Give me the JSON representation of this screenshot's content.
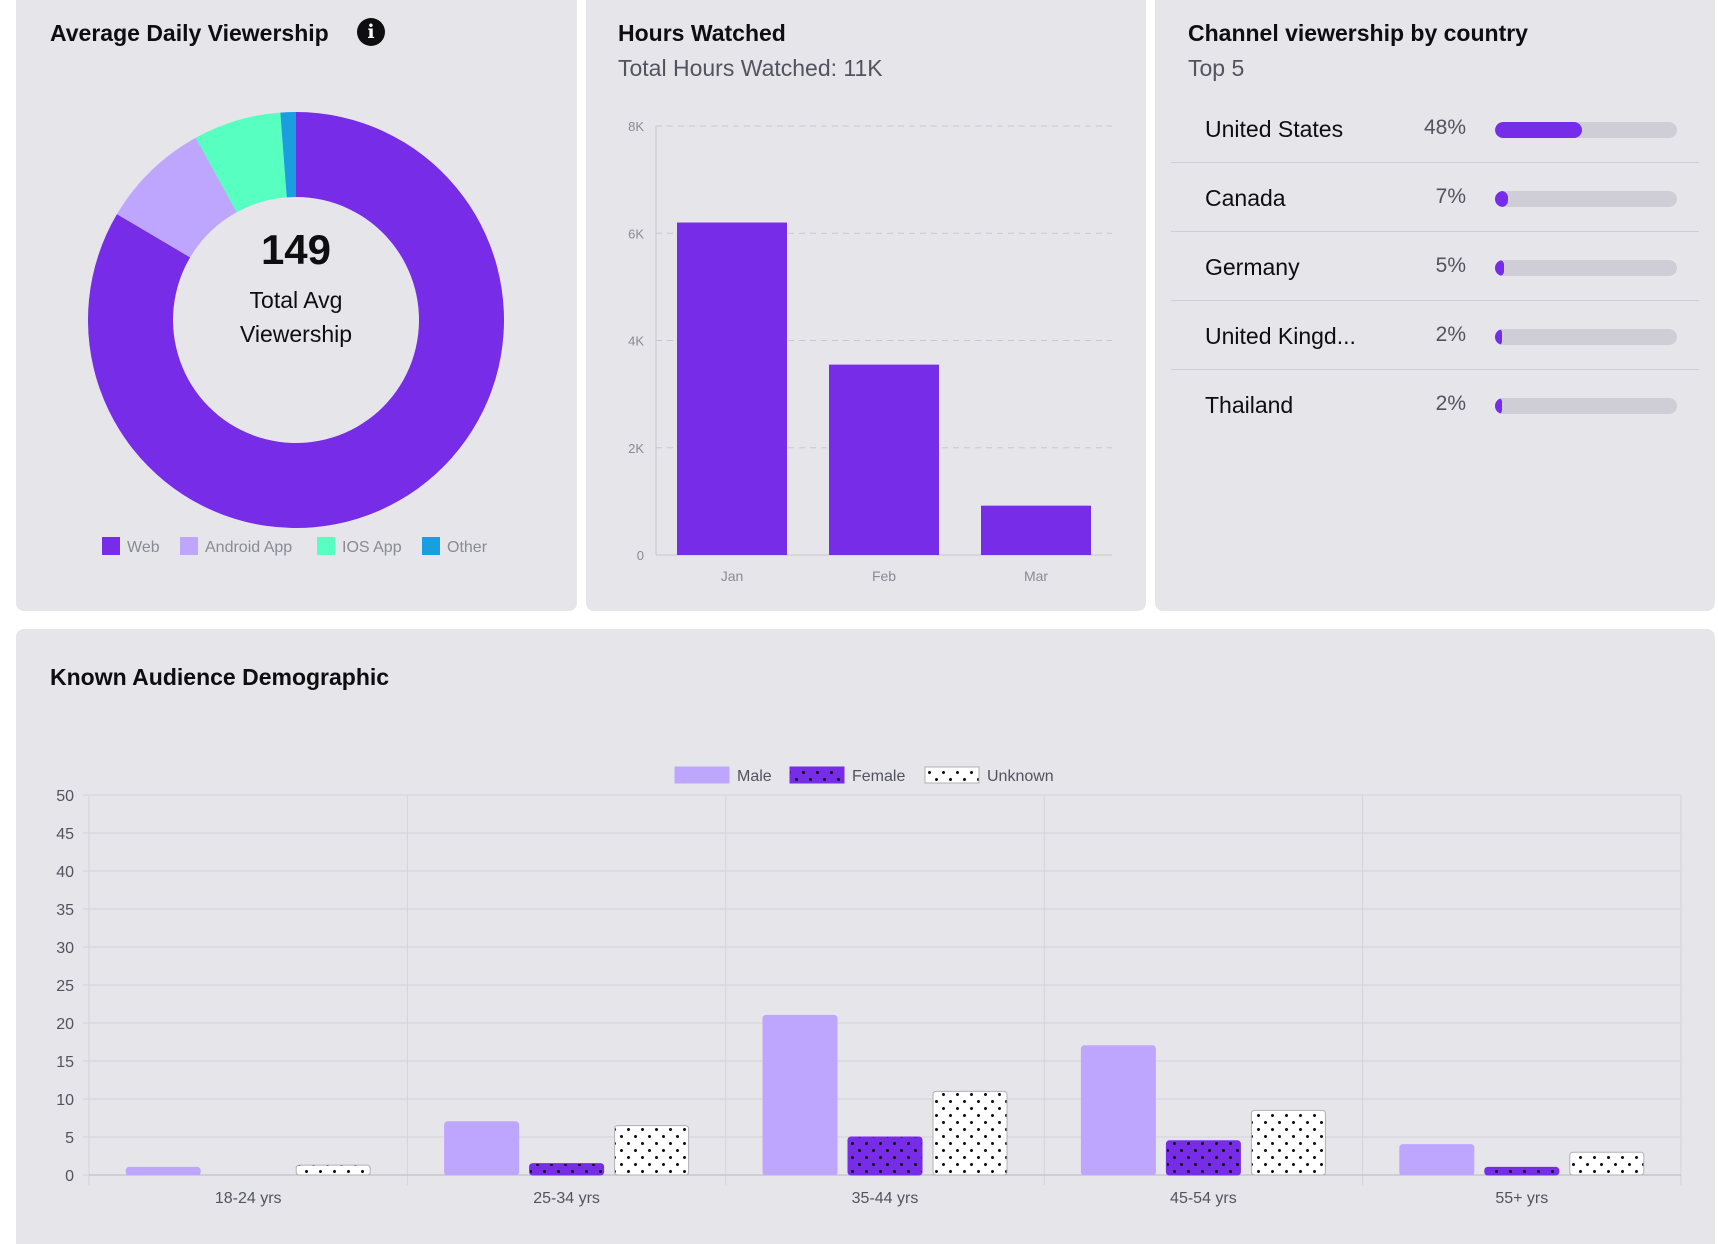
{
  "colors": {
    "card_bg": "#e6e5ea",
    "purple": "#772ce8",
    "light_purple": "#bea6ff",
    "mint": "#57ffc0",
    "blue": "#1b9ee0",
    "track": "#cfced6"
  },
  "avg_daily": {
    "title": "Average Daily Viewership",
    "info_icon": "info-icon",
    "center_value": "149",
    "center_label_line1": "Total Avg",
    "center_label_line2": "Viewership"
  },
  "hours": {
    "title": "Hours Watched",
    "subtitle": "Total Hours Watched: 11K"
  },
  "country": {
    "title": "Channel viewership by country",
    "subtitle": "Top 5",
    "rows": [
      {
        "name": "United States",
        "pct_label": "48%",
        "pct": 48
      },
      {
        "name": "Canada",
        "pct_label": "7%",
        "pct": 7
      },
      {
        "name": "Germany",
        "pct_label": "5%",
        "pct": 5
      },
      {
        "name": "United Kingd...",
        "pct_label": "2%",
        "pct": 2
      },
      {
        "name": "Thailand",
        "pct_label": "2%",
        "pct": 2
      }
    ]
  },
  "demographic": {
    "title": "Known Audience Demographic"
  },
  "chart_data": [
    {
      "type": "pie",
      "title": "Average Daily Viewership",
      "donut": true,
      "categories": [
        "Web",
        "Android App",
        "IOS App",
        "Other"
      ],
      "values": [
        83.5,
        8.5,
        6.8,
        1.2
      ],
      "colors": [
        "#772ce8",
        "#bea6ff",
        "#57ffc0",
        "#1b9ee0"
      ],
      "legend": "bottom"
    },
    {
      "type": "bar",
      "title": "Hours Watched",
      "categories": [
        "Jan",
        "Feb",
        "Mar"
      ],
      "values": [
        6200,
        3550,
        920
      ],
      "ylim": [
        0,
        8000
      ],
      "yticks": [
        0,
        2000,
        4000,
        6000,
        8000
      ],
      "yticklabels": [
        "0",
        "2K",
        "4K",
        "6K",
        "8K"
      ],
      "grid": true
    },
    {
      "type": "bar",
      "title": "Known Audience Demographic",
      "categories": [
        "18-24 yrs",
        "25-34 yrs",
        "35-44 yrs",
        "45-54 yrs",
        "55+ yrs"
      ],
      "series": [
        {
          "name": "Male",
          "values": [
            1,
            7,
            21,
            17,
            4
          ]
        },
        {
          "name": "Female",
          "values": [
            0,
            1.5,
            5,
            4.5,
            1
          ]
        },
        {
          "name": "Unknown",
          "values": [
            1.3,
            6.5,
            11,
            8.5,
            3
          ]
        }
      ],
      "ylim": [
        0,
        50
      ],
      "yticks": [
        0,
        5,
        10,
        15,
        20,
        25,
        30,
        35,
        40,
        45,
        50
      ],
      "grid": true,
      "legend": "top"
    }
  ]
}
